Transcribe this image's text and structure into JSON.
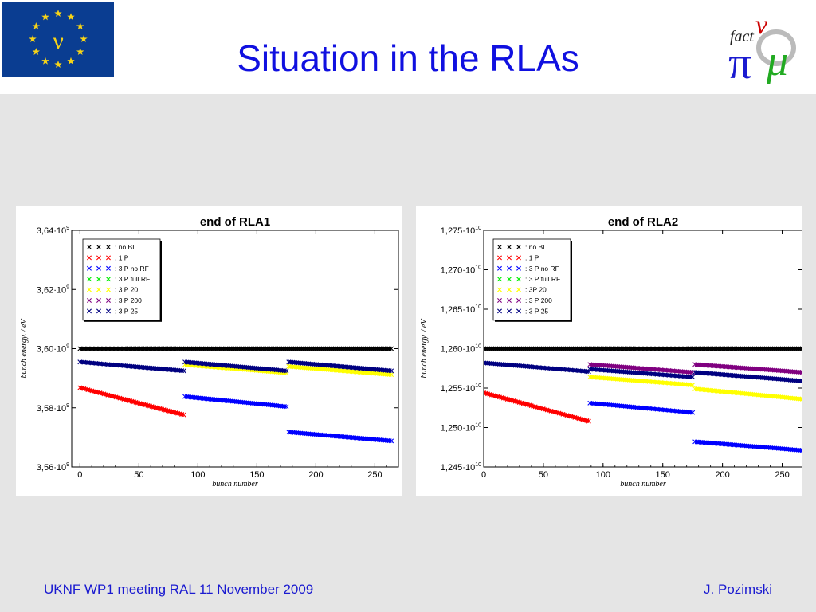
{
  "slide": {
    "title": "Situation in the RLAs",
    "footer_left": "UKNF WP1 meeting RAL 11 November 2009",
    "footer_right": "J. Pozimski",
    "logo": {
      "nu": "ν",
      "fact": "fact",
      "pi": "π",
      "mu": "μ"
    },
    "eu_logo_symbol": "ν",
    "colors": {
      "title": "#1010e0",
      "footer": "#1a1ad0",
      "background": "#e5e5e5"
    }
  },
  "chart_data": [
    {
      "type": "scatter",
      "title": "end of RLA1",
      "xlabel": "bunch number",
      "ylabel": "bunch energy. / eV",
      "xlim": [
        -7,
        270
      ],
      "ylim": [
        3560000000.0,
        3640000000.0
      ],
      "x_ticks": [
        0,
        50,
        100,
        150,
        200,
        250
      ],
      "y_ticks": [
        {
          "value": 3640000000.0,
          "mantissa": "3,64",
          "exp": "9"
        },
        {
          "value": 3620000000.0,
          "mantissa": "3,62",
          "exp": "9"
        },
        {
          "value": 3600000000.0,
          "mantissa": "3,60",
          "exp": "9"
        },
        {
          "value": 3580000000.0,
          "mantissa": "3,58",
          "exp": "9"
        },
        {
          "value": 3560000000.0,
          "mantissa": "3,56",
          "exp": "9"
        }
      ],
      "legend_position": "top-left",
      "series": [
        {
          "name": ": no BL",
          "color": "#000000",
          "segments": [
            [
              0,
              3600000000.0,
              264,
              3600000000.0
            ]
          ]
        },
        {
          "name": ": 1 P",
          "color": "#ff0000",
          "segments": [
            [
              0,
              3586800000.0,
              88,
              3577600000.0
            ]
          ]
        },
        {
          "name": ": 3 P no RF",
          "color": "#0000ff",
          "segments": [
            [
              89,
              3583800000.0,
              175,
              3580400000.0
            ],
            [
              177,
              3571800000.0,
              264,
              3568800000.0
            ]
          ]
        },
        {
          "name": ": 3 P full RF",
          "color": "#00ee00",
          "segments": []
        },
        {
          "name": ": 3 P 20",
          "color": "#ffff00",
          "segments": [
            [
              89,
              3594600000.0,
              175,
              3591800000.0
            ],
            [
              177,
              3594000000.0,
              264,
              3591200000.0
            ]
          ]
        },
        {
          "name": ": 3 P 200",
          "color": "#800080",
          "segments": []
        },
        {
          "name": ": 3 P 25",
          "color": "#000080",
          "segments": [
            [
              0,
              3595500000.0,
              88,
              3592500000.0
            ],
            [
              89,
              3595500000.0,
              175,
              3592500000.0
            ],
            [
              177,
              3595500000.0,
              264,
              3592500000.0
            ]
          ]
        }
      ]
    },
    {
      "type": "scatter",
      "title": "end of RLA2",
      "xlabel": "bunch number",
      "ylabel": "bunch energy. / eV",
      "xlim": [
        0,
        267
      ],
      "ylim": [
        12450000000.0,
        12750000000.0
      ],
      "x_ticks": [
        0,
        50,
        100,
        150,
        200,
        250
      ],
      "y_ticks": [
        {
          "value": 12750000000.0,
          "mantissa": "1,275",
          "exp": "10"
        },
        {
          "value": 12700000000.0,
          "mantissa": "1,270",
          "exp": "10"
        },
        {
          "value": 12650000000.0,
          "mantissa": "1,265",
          "exp": "10"
        },
        {
          "value": 12600000000.0,
          "mantissa": "1,260",
          "exp": "10"
        },
        {
          "value": 12550000000.0,
          "mantissa": "1,255",
          "exp": "10"
        },
        {
          "value": 12500000000.0,
          "mantissa": "1,250",
          "exp": "10"
        },
        {
          "value": 12450000000.0,
          "mantissa": "1,245",
          "exp": "10"
        }
      ],
      "legend_position": "top-left",
      "series": [
        {
          "name": ": no BL",
          "color": "#000000",
          "segments": [
            [
              0,
              12600000000.0,
              267,
              12600000000.0
            ]
          ]
        },
        {
          "name": ": 1 P",
          "color": "#ff0000",
          "segments": [
            [
              0,
              12544000000.0,
              88,
              12508000000.0
            ]
          ]
        },
        {
          "name": ": 3 P no RF",
          "color": "#0000ff",
          "segments": [
            [
              89,
              12531000000.0,
              175,
              12519000000.0
            ],
            [
              177,
              12482000000.0,
              267,
              12471000000.0
            ]
          ]
        },
        {
          "name": ": 3 P full RF",
          "color": "#00ee00",
          "segments": []
        },
        {
          "name": ": 3P 20",
          "color": "#ffff00",
          "segments": [
            [
              89,
              12564000000.0,
              175,
              12554000000.0
            ],
            [
              177,
              12549000000.0,
              267,
              12536000000.0
            ]
          ]
        },
        {
          "name": ": 3 P 200",
          "color": "#800080",
          "segments": [
            [
              89,
              12580000000.0,
              175,
              12570000000.0
            ],
            [
              177,
              12580000000.0,
              267,
              12570000000.0
            ]
          ]
        },
        {
          "name": ": 3 P 25",
          "color": "#000080",
          "segments": [
            [
              0,
              12582000000.0,
              88,
              12571000000.0
            ],
            [
              89,
              12574000000.0,
              175,
              12564000000.0
            ],
            [
              177,
              12570000000.0,
              267,
              12559000000.0
            ]
          ]
        }
      ]
    }
  ]
}
